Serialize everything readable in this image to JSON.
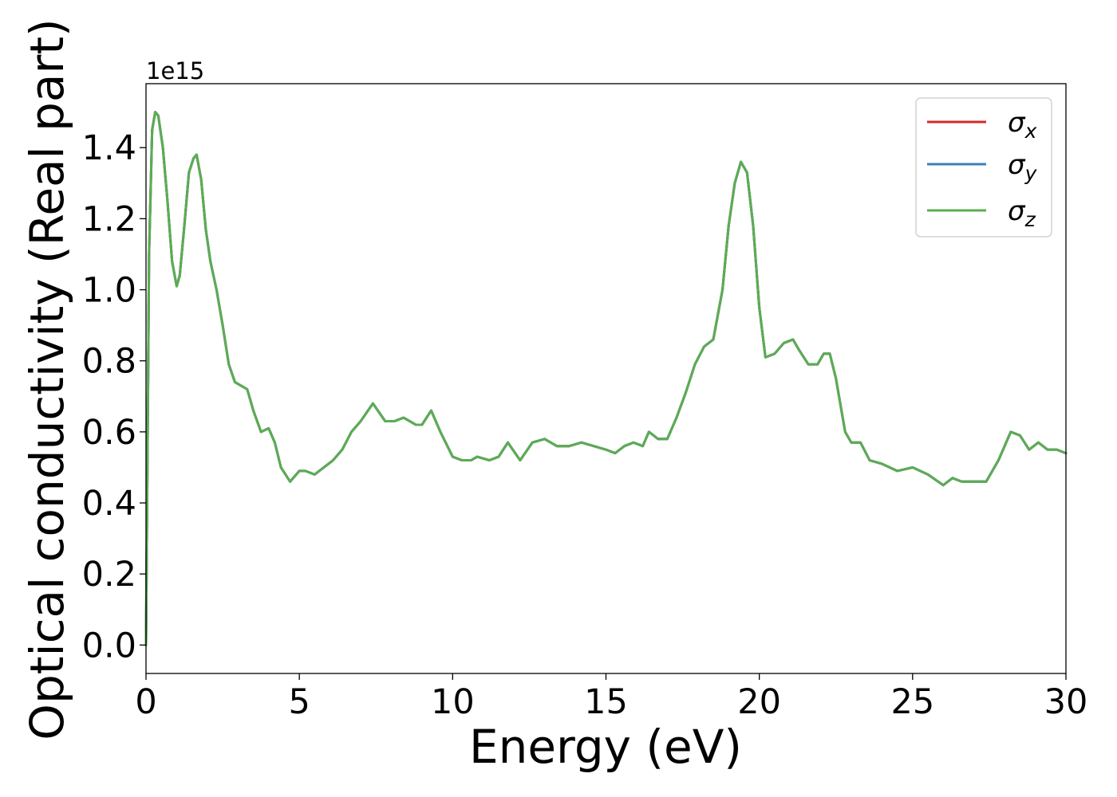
{
  "chart_data": {
    "type": "line",
    "xlabel": "Energy (eV)",
    "ylabel": "Optical conductivity (Real part)",
    "y_offset_label": "1e15",
    "xlim": [
      0,
      30
    ],
    "ylim": [
      -0.08,
      1.58
    ],
    "xticks": [
      0,
      5,
      10,
      15,
      20,
      25,
      30
    ],
    "xtick_labels": [
      "0",
      "5",
      "10",
      "15",
      "20",
      "25",
      "30"
    ],
    "yticks": [
      0.0,
      0.2,
      0.4,
      0.6,
      0.8,
      1.0,
      1.2,
      1.4
    ],
    "ytick_labels": [
      "0.0",
      "0.2",
      "0.4",
      "0.6",
      "0.8",
      "1.0",
      "1.2",
      "1.4"
    ],
    "grid": false,
    "legend_position": "top-right",
    "series": [
      {
        "name": "σx",
        "legend_base": "σ",
        "legend_sub": "x",
        "color": "#d62728",
        "x": [
          0,
          0.1,
          0.2,
          0.3,
          0.4,
          0.55,
          0.7,
          0.85,
          1.0,
          1.1,
          1.25,
          1.4,
          1.55,
          1.65,
          1.8,
          1.95,
          2.1,
          2.3,
          2.5,
          2.7,
          2.9,
          3.1,
          3.3,
          3.5,
          3.75,
          4.0,
          4.2,
          4.4,
          4.7,
          5.0,
          5.2,
          5.5,
          5.8,
          6.1,
          6.4,
          6.7,
          7.0,
          7.4,
          7.8,
          8.1,
          8.4,
          8.8,
          9.0,
          9.3,
          9.6,
          10.0,
          10.3,
          10.6,
          10.8,
          11.2,
          11.5,
          11.8,
          12.2,
          12.6,
          13.0,
          13.4,
          13.8,
          14.2,
          14.6,
          15.0,
          15.3,
          15.6,
          15.9,
          16.2,
          16.4,
          16.7,
          17.0,
          17.3,
          17.6,
          17.9,
          18.2,
          18.5,
          18.8,
          19.0,
          19.2,
          19.4,
          19.6,
          19.8,
          20.0,
          20.2,
          20.5,
          20.8,
          21.1,
          21.3,
          21.6,
          21.9,
          22.1,
          22.3,
          22.5,
          22.8,
          23.0,
          23.3,
          23.6,
          24.0,
          24.5,
          25.0,
          25.5,
          26.0,
          26.3,
          26.6,
          27.0,
          27.4,
          27.8,
          28.2,
          28.5,
          28.8,
          29.1,
          29.4,
          29.7,
          30.0
        ],
        "y": [
          0.0,
          1.1,
          1.45,
          1.5,
          1.49,
          1.4,
          1.25,
          1.08,
          1.01,
          1.04,
          1.18,
          1.33,
          1.37,
          1.38,
          1.31,
          1.17,
          1.08,
          1.0,
          0.9,
          0.79,
          0.74,
          0.73,
          0.72,
          0.66,
          0.6,
          0.61,
          0.57,
          0.5,
          0.46,
          0.49,
          0.49,
          0.48,
          0.5,
          0.52,
          0.55,
          0.6,
          0.63,
          0.68,
          0.63,
          0.63,
          0.64,
          0.62,
          0.62,
          0.66,
          0.6,
          0.53,
          0.52,
          0.52,
          0.53,
          0.52,
          0.53,
          0.57,
          0.52,
          0.57,
          0.58,
          0.56,
          0.56,
          0.57,
          0.56,
          0.55,
          0.54,
          0.56,
          0.57,
          0.56,
          0.6,
          0.58,
          0.58,
          0.64,
          0.71,
          0.79,
          0.84,
          0.86,
          1.0,
          1.18,
          1.3,
          1.36,
          1.33,
          1.18,
          0.95,
          0.81,
          0.82,
          0.85,
          0.86,
          0.83,
          0.79,
          0.79,
          0.82,
          0.82,
          0.75,
          0.6,
          0.57,
          0.57,
          0.52,
          0.51,
          0.49,
          0.5,
          0.48,
          0.45,
          0.47,
          0.46,
          0.46,
          0.46,
          0.52,
          0.6,
          0.59,
          0.55,
          0.57,
          0.55,
          0.55,
          0.54
        ]
      },
      {
        "name": "σy",
        "legend_base": "σ",
        "legend_sub": "y",
        "color": "#3a7ebf",
        "x": [
          0,
          0.1,
          0.2,
          0.3,
          0.4,
          0.55,
          0.7,
          0.85,
          1.0,
          1.1,
          1.25,
          1.4,
          1.55,
          1.65,
          1.8,
          1.95,
          2.1,
          2.3,
          2.5,
          2.7,
          2.9,
          3.1,
          3.3,
          3.5,
          3.75,
          4.0,
          4.2,
          4.4,
          4.7,
          5.0,
          5.2,
          5.5,
          5.8,
          6.1,
          6.4,
          6.7,
          7.0,
          7.4,
          7.8,
          8.1,
          8.4,
          8.8,
          9.0,
          9.3,
          9.6,
          10.0,
          10.3,
          10.6,
          10.8,
          11.2,
          11.5,
          11.8,
          12.2,
          12.6,
          13.0,
          13.4,
          13.8,
          14.2,
          14.6,
          15.0,
          15.3,
          15.6,
          15.9,
          16.2,
          16.4,
          16.7,
          17.0,
          17.3,
          17.6,
          17.9,
          18.2,
          18.5,
          18.8,
          19.0,
          19.2,
          19.4,
          19.6,
          19.8,
          20.0,
          20.2,
          20.5,
          20.8,
          21.1,
          21.3,
          21.6,
          21.9,
          22.1,
          22.3,
          22.5,
          22.8,
          23.0,
          23.3,
          23.6,
          24.0,
          24.5,
          25.0,
          25.5,
          26.0,
          26.3,
          26.6,
          27.0,
          27.4,
          27.8,
          28.2,
          28.5,
          28.8,
          29.1,
          29.4,
          29.7,
          30.0
        ],
        "y": [
          0.0,
          1.1,
          1.45,
          1.5,
          1.49,
          1.4,
          1.25,
          1.08,
          1.01,
          1.04,
          1.18,
          1.33,
          1.37,
          1.38,
          1.31,
          1.17,
          1.08,
          1.0,
          0.9,
          0.79,
          0.74,
          0.73,
          0.72,
          0.66,
          0.6,
          0.61,
          0.57,
          0.5,
          0.46,
          0.49,
          0.49,
          0.48,
          0.5,
          0.52,
          0.55,
          0.6,
          0.63,
          0.68,
          0.63,
          0.63,
          0.64,
          0.62,
          0.62,
          0.66,
          0.6,
          0.53,
          0.52,
          0.52,
          0.53,
          0.52,
          0.53,
          0.57,
          0.52,
          0.57,
          0.58,
          0.56,
          0.56,
          0.57,
          0.56,
          0.55,
          0.54,
          0.56,
          0.57,
          0.56,
          0.6,
          0.58,
          0.58,
          0.64,
          0.71,
          0.79,
          0.84,
          0.86,
          1.0,
          1.18,
          1.3,
          1.36,
          1.33,
          1.18,
          0.95,
          0.81,
          0.82,
          0.85,
          0.86,
          0.83,
          0.79,
          0.79,
          0.82,
          0.82,
          0.75,
          0.6,
          0.57,
          0.57,
          0.52,
          0.51,
          0.49,
          0.5,
          0.48,
          0.45,
          0.47,
          0.46,
          0.46,
          0.46,
          0.52,
          0.6,
          0.59,
          0.55,
          0.57,
          0.55,
          0.55,
          0.54
        ]
      },
      {
        "name": "σz",
        "legend_base": "σ",
        "legend_sub": "z",
        "color": "#5aad52",
        "x": [
          0,
          0.1,
          0.2,
          0.3,
          0.4,
          0.55,
          0.7,
          0.85,
          1.0,
          1.1,
          1.25,
          1.4,
          1.55,
          1.65,
          1.8,
          1.95,
          2.1,
          2.3,
          2.5,
          2.7,
          2.9,
          3.1,
          3.3,
          3.5,
          3.75,
          4.0,
          4.2,
          4.4,
          4.7,
          5.0,
          5.2,
          5.5,
          5.8,
          6.1,
          6.4,
          6.7,
          7.0,
          7.4,
          7.8,
          8.1,
          8.4,
          8.8,
          9.0,
          9.3,
          9.6,
          10.0,
          10.3,
          10.6,
          10.8,
          11.2,
          11.5,
          11.8,
          12.2,
          12.6,
          13.0,
          13.4,
          13.8,
          14.2,
          14.6,
          15.0,
          15.3,
          15.6,
          15.9,
          16.2,
          16.4,
          16.7,
          17.0,
          17.3,
          17.6,
          17.9,
          18.2,
          18.5,
          18.8,
          19.0,
          19.2,
          19.4,
          19.6,
          19.8,
          20.0,
          20.2,
          20.5,
          20.8,
          21.1,
          21.3,
          21.6,
          21.9,
          22.1,
          22.3,
          22.5,
          22.8,
          23.0,
          23.3,
          23.6,
          24.0,
          24.5,
          25.0,
          25.5,
          26.0,
          26.3,
          26.6,
          27.0,
          27.4,
          27.8,
          28.2,
          28.5,
          28.8,
          29.1,
          29.4,
          29.7,
          30.0
        ],
        "y": [
          0.0,
          1.1,
          1.45,
          1.5,
          1.49,
          1.4,
          1.25,
          1.08,
          1.01,
          1.04,
          1.18,
          1.33,
          1.37,
          1.38,
          1.31,
          1.17,
          1.08,
          1.0,
          0.9,
          0.79,
          0.74,
          0.73,
          0.72,
          0.66,
          0.6,
          0.61,
          0.57,
          0.5,
          0.46,
          0.49,
          0.49,
          0.48,
          0.5,
          0.52,
          0.55,
          0.6,
          0.63,
          0.68,
          0.63,
          0.63,
          0.64,
          0.62,
          0.62,
          0.66,
          0.6,
          0.53,
          0.52,
          0.52,
          0.53,
          0.52,
          0.53,
          0.57,
          0.52,
          0.57,
          0.58,
          0.56,
          0.56,
          0.57,
          0.56,
          0.55,
          0.54,
          0.56,
          0.57,
          0.56,
          0.6,
          0.58,
          0.58,
          0.64,
          0.71,
          0.79,
          0.84,
          0.86,
          1.0,
          1.18,
          1.3,
          1.36,
          1.33,
          1.18,
          0.95,
          0.81,
          0.82,
          0.85,
          0.86,
          0.83,
          0.79,
          0.79,
          0.82,
          0.82,
          0.75,
          0.6,
          0.57,
          0.57,
          0.52,
          0.51,
          0.49,
          0.5,
          0.48,
          0.45,
          0.47,
          0.46,
          0.46,
          0.46,
          0.52,
          0.6,
          0.59,
          0.55,
          0.57,
          0.55,
          0.55,
          0.54
        ]
      }
    ]
  }
}
